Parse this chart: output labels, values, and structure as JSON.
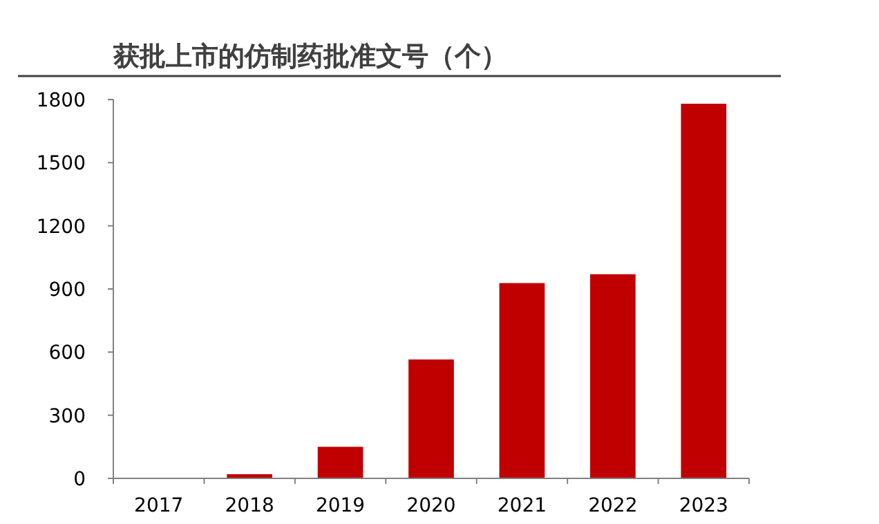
{
  "chart_data": {
    "type": "bar",
    "title": "获批上市的仿制药批准文号（个）",
    "categories": [
      "2017",
      "2018",
      "2019",
      "2020",
      "2021",
      "2022",
      "2023"
    ],
    "values": [
      0,
      20,
      150,
      565,
      928,
      970,
      1780
    ],
    "color": "#c00000",
    "ylim": [
      0,
      1800
    ],
    "yticks": [
      0,
      300,
      600,
      900,
      1200,
      1500,
      1800
    ],
    "grid": false
  }
}
